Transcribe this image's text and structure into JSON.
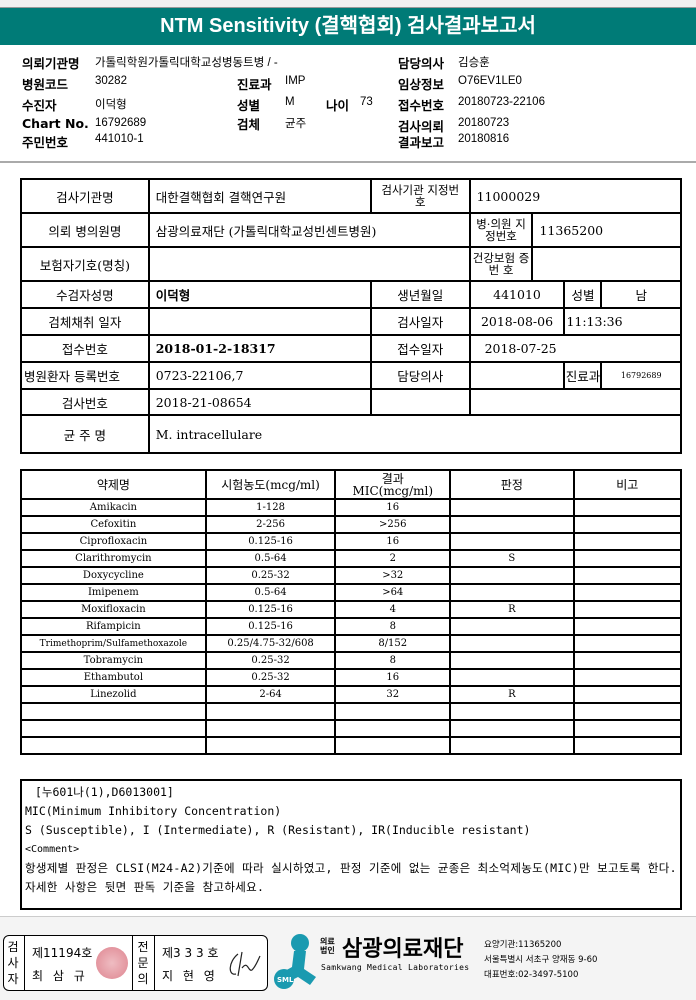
{
  "title": "NTM Sensitivity (결핵협회) 검사결과보고서",
  "header": {
    "institution_label": "의뢰기관명",
    "institution": "가톨릭학원가톨릭대학교성병동트병 / -",
    "hospital_code_label": "병원코드",
    "hospital_code": "30282",
    "dept_label": "진료과",
    "dept": "IMP",
    "patient_label": "수진자",
    "patient": "이덕형",
    "sex_label": "성별",
    "sex": "M",
    "age_label": "나이",
    "age": "73",
    "chart_label": "Chart No.",
    "chart": "16792689",
    "specimen_label": "검체",
    "specimen": "균주",
    "rrn_label": "주민번호",
    "rrn": "441010-1",
    "doctor_label": "담당의사",
    "doctor": "김승훈",
    "clinical_label": "임상정보",
    "clinical": "O76EV1LE0",
    "accession_label": "접수번호",
    "accession": "20180723-22106",
    "request_label": "검사의뢰",
    "request": "20180723",
    "report_label": "결과보고",
    "report": "20180816"
  },
  "info": {
    "lab_name_label": "검사기관명",
    "lab_name": "대한결핵협회 결핵연구원",
    "lab_id_label": "검사기관 지정번호",
    "lab_id": "11000029",
    "req_hosp_label": "의뢰 병의원명",
    "req_hosp": "삼광의료재단 (가톨릭대학교성빈센트병원)",
    "hosp_id_label": "병·의원 지정번호",
    "hosp_id": "11365200",
    "insurer_label": "보험자기호(명칭)",
    "insurance_label": "건강보험 증 번 호",
    "name_label": "수검자성명",
    "name": "이덕형",
    "birth_label": "생년월일",
    "birth": "441010",
    "sex_label": "성별",
    "sex": "남",
    "collect_label": "검체채취 일자",
    "test_date_label": "검사일자",
    "test_date": "2018-08-06",
    "test_time": "11:13:36",
    "acc_label": "접수번호",
    "acc": "2018-01-2-18317",
    "acc_date_label": "접수일자",
    "acc_date": "2018-07-25",
    "reg_label": "병원환자 등록번호",
    "reg": "0723-22106,7",
    "doc_label": "담당의사",
    "dept_label": "진료과",
    "dept": "16792689",
    "test_no_label": "검사번호",
    "test_no": "2018-21-08654",
    "strain_label": "균 주 명",
    "strain": "M. intracellulare"
  },
  "drug_table": {
    "headers": [
      "약제명",
      "시험농도(mcg/ml)",
      "결과 MIC(mcg/ml)",
      "판정",
      "비고"
    ],
    "rows": [
      [
        "Amikacin",
        "1-128",
        "16",
        "",
        ""
      ],
      [
        "Cefoxitin",
        "2-256",
        ">256",
        "",
        ""
      ],
      [
        "Ciprofloxacin",
        "0.125-16",
        "16",
        "",
        ""
      ],
      [
        "Clarithromycin",
        "0.5-64",
        "2",
        "S",
        ""
      ],
      [
        "Doxycycline",
        "0.25-32",
        ">32",
        "",
        ""
      ],
      [
        "Imipenem",
        "0.5-64",
        ">64",
        "",
        ""
      ],
      [
        "Moxifloxacin",
        "0.125-16",
        "4",
        "R",
        ""
      ],
      [
        "Rifampicin",
        "0.125-16",
        "8",
        "",
        ""
      ],
      [
        "Trimethoprim/Sulfamethoxazole",
        "0.25/4.75-32/608",
        "8/152",
        "",
        ""
      ],
      [
        "Tobramycin",
        "0.25-32",
        "8",
        "",
        ""
      ],
      [
        "Ethambutol",
        "0.25-32",
        "16",
        "",
        ""
      ],
      [
        "Linezolid",
        "2-64",
        "32",
        "R",
        ""
      ],
      [
        "",
        "",
        "",
        "",
        ""
      ],
      [
        "",
        "",
        "",
        "",
        ""
      ],
      [
        "",
        "",
        "",
        "",
        ""
      ]
    ]
  },
  "comment": {
    "lines": [
      "[누601나(1),D6013001]",
      "MIC(Minimum Inhibitory Concentration)",
      "S (Susceptible), I (Intermediate), R (Resistant), IR(Inducible resistant)",
      "<Comment>",
      " 항생제별 판정은 CLSI(M24-A2)기준에 따라 실시하였고, 판정 기준에 없는 균종은 최소억제농도(MIC)만 보고토록 한다. 자세한 사항은 뒷면 판독 기준을 참고하세요."
    ]
  },
  "footer": {
    "tester_label": "검사자",
    "tester_no": "제11194호",
    "tester": "최 삼 규",
    "specialist_label": "전문의",
    "specialist_no": "제3 3 3 호",
    "specialist": "지 현 영",
    "logo_prefix": "의료법인",
    "org": "삼광의료재단",
    "org_en": "Samkwang Medical Laboratories",
    "logo_badge": "SML",
    "code": "요양기관:11365200",
    "address": "서울특별시 서초구 양재동 9-60",
    "phone": "대표번호:02-3497-5100",
    "brand_color": "#1a9ab0",
    "title_color": "#007b77"
  }
}
